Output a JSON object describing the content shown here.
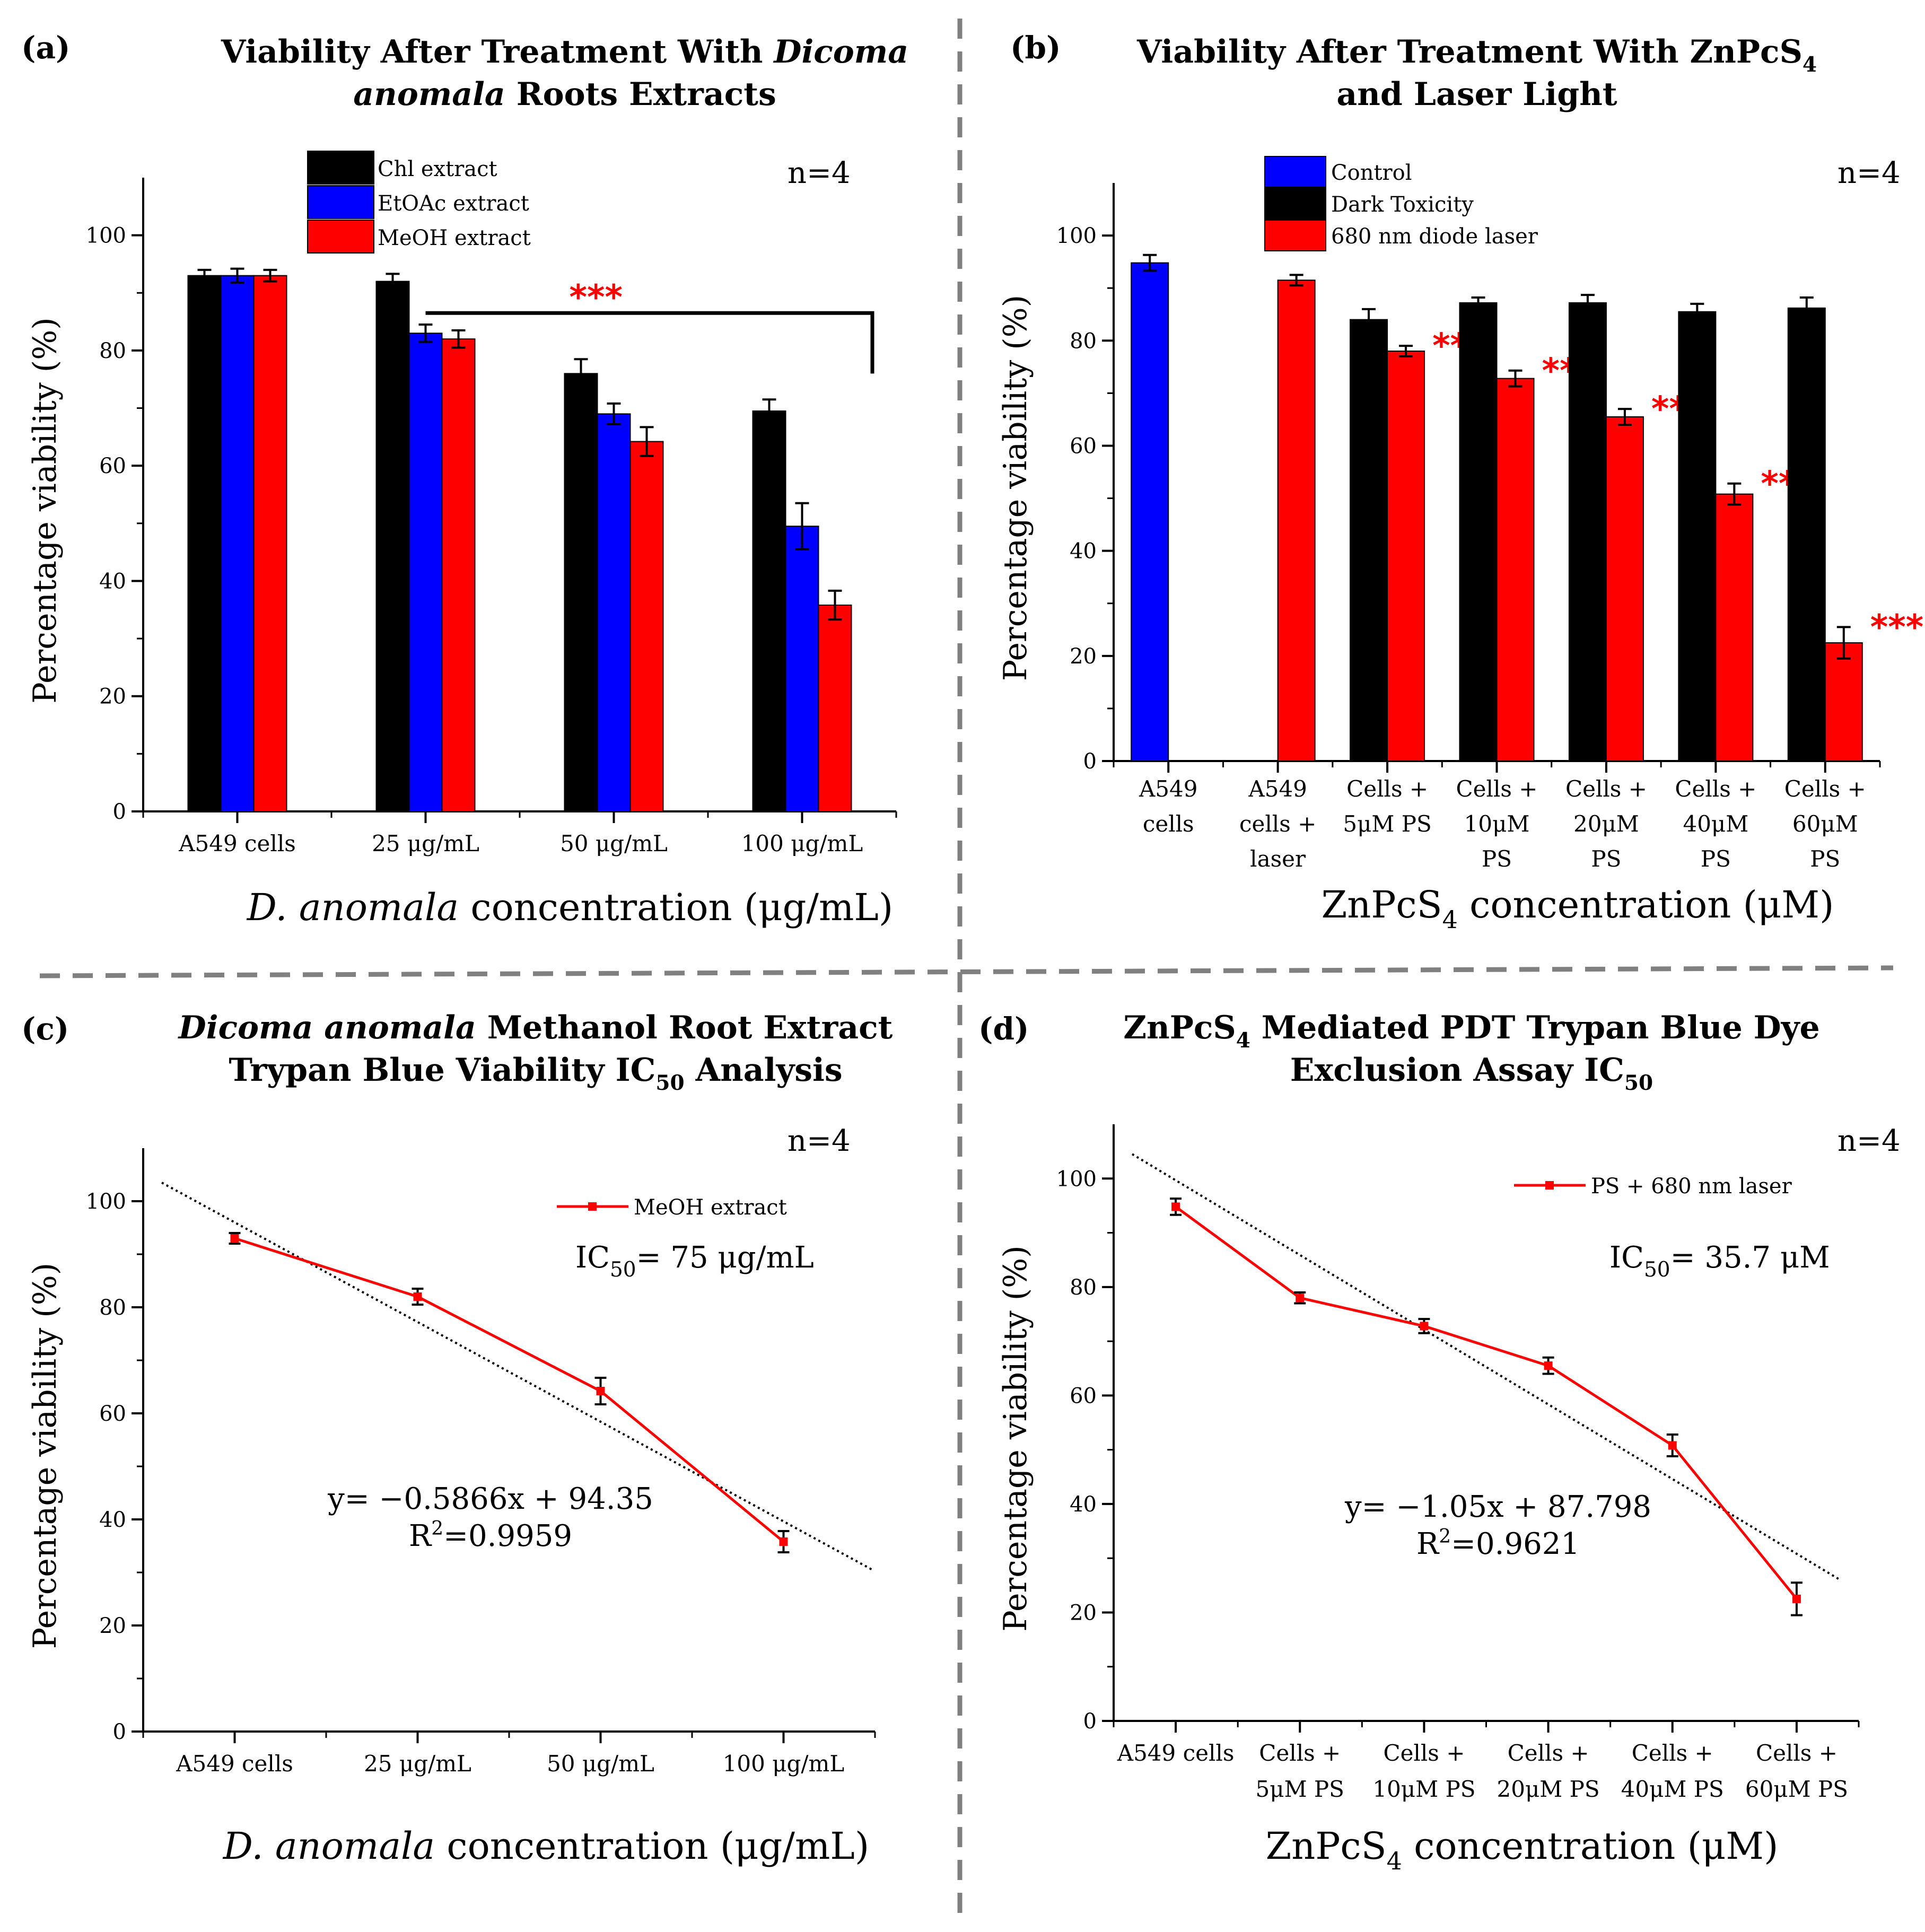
{
  "colors": {
    "black": "#000000",
    "blue": "#0000ff",
    "red": "#ff0000",
    "divider": "#808080",
    "trend": "#000000"
  },
  "chart_data": [
    {
      "panel": "(a)",
      "type": "bar",
      "title_lines": [
        [
          {
            "t": "Viability After Treatment With "
          },
          {
            "t": "Dicoma",
            "i": true
          }
        ],
        [
          {
            "t": "anomala",
            "i": true
          },
          {
            "t": " Roots Extracts"
          }
        ]
      ],
      "n_label": "n=4",
      "ylabel": "Percentage viability (%)",
      "xlabel": [
        {
          "t": "D. anomala",
          "i": true
        },
        {
          "t": " concentration (μg/mL)"
        }
      ],
      "ylim": [
        0,
        110
      ],
      "yticks": [
        "0",
        "20",
        "40",
        "60",
        "80",
        "100"
      ],
      "categories": [
        [
          "A549 cells"
        ],
        [
          "25 μg/mL"
        ],
        [
          "50 μg/mL"
        ],
        [
          "100 μg/mL"
        ]
      ],
      "series": [
        {
          "name": "Chl extract",
          "color": "#000000",
          "values": [
            93,
            92,
            76,
            69.5
          ],
          "errors": [
            1,
            1.3,
            2.5,
            2
          ]
        },
        {
          "name": "EtOAc extract",
          "color": "#0000ff",
          "values": [
            93,
            83,
            69,
            49.5
          ],
          "errors": [
            1.2,
            1.5,
            1.8,
            4
          ]
        },
        {
          "name": "MeOH extract",
          "color": "#ff0000",
          "values": [
            93,
            82,
            64.2,
            35.8
          ],
          "errors": [
            1,
            1.5,
            2.5,
            2.5
          ]
        }
      ],
      "significance": "***"
    },
    {
      "panel": "(b)",
      "type": "bar",
      "title_lines": [
        [
          {
            "t": "Viability After Treatment With ZnPcS"
          },
          {
            "t": "4",
            "sub": true
          }
        ],
        [
          {
            "t": "and Laser Light"
          }
        ]
      ],
      "n_label": "n=4",
      "ylabel": "Percentage viability (%)",
      "xlabel": [
        {
          "t": "ZnPcS"
        },
        {
          "t": "4",
          "sub": true
        },
        {
          "t": " concentration (μM)"
        }
      ],
      "ylim": [
        0,
        110
      ],
      "yticks": [
        "0",
        "20",
        "40",
        "60",
        "80",
        "100"
      ],
      "categories": [
        [
          "A549",
          "cells"
        ],
        [
          "A549",
          "cells +",
          "laser"
        ],
        [
          "Cells +",
          "5μM PS"
        ],
        [
          "Cells +",
          "10μM",
          "PS"
        ],
        [
          "Cells +",
          "20μM",
          "PS"
        ],
        [
          "Cells +",
          "40μM",
          "PS"
        ],
        [
          "Cells +",
          "60μM",
          "PS"
        ]
      ],
      "legend": [
        "Control",
        "Dark Toxicity",
        "680 nm diode laser"
      ],
      "bars": [
        [
          {
            "color": "#0000ff",
            "value": 94.8,
            "err": 1.5
          }
        ],
        [
          {
            "color": "#ff0000",
            "value": 91.5,
            "err": 1
          }
        ],
        [
          {
            "color": "#000000",
            "value": 84,
            "err": 2
          },
          {
            "color": "#ff0000",
            "value": 78,
            "err": 1
          }
        ],
        [
          {
            "color": "#000000",
            "value": 87.2,
            "err": 1
          },
          {
            "color": "#ff0000",
            "value": 72.8,
            "err": 1.5
          }
        ],
        [
          {
            "color": "#000000",
            "value": 87.2,
            "err": 1.5
          },
          {
            "color": "#ff0000",
            "value": 65.5,
            "err": 1.5
          }
        ],
        [
          {
            "color": "#000000",
            "value": 85.5,
            "err": 1.5
          },
          {
            "color": "#ff0000",
            "value": 50.8,
            "err": 2
          }
        ],
        [
          {
            "color": "#000000",
            "value": 86.2,
            "err": 2
          },
          {
            "color": "#ff0000",
            "value": 22.5,
            "err": 3
          }
        ]
      ],
      "significance": [
        "",
        "",
        "**",
        "***",
        "***",
        "***",
        "***"
      ]
    },
    {
      "panel": "(c)",
      "type": "line",
      "title_lines": [
        [
          {
            "t": "Dicoma anomala",
            "i": true
          },
          {
            "t": " Methanol Root Extract"
          }
        ],
        [
          {
            "t": "Trypan Blue Viability IC"
          },
          {
            "t": "50",
            "sub": true
          },
          {
            "t": " Analysis"
          }
        ]
      ],
      "n_label": "n=4",
      "ylabel": "Percentage viability (%)",
      "xlabel": [
        {
          "t": "D. anomala",
          "i": true
        },
        {
          "t": " concentration (μg/mL)"
        }
      ],
      "ylim": [
        0,
        110
      ],
      "yticks": [
        "0",
        "20",
        "40",
        "60",
        "80",
        "100"
      ],
      "categories": [
        [
          "A549 cells"
        ],
        [
          "25 μg/mL"
        ],
        [
          "50 μg/mL"
        ],
        [
          "100 μg/mL"
        ]
      ],
      "series": [
        {
          "name": "MeOH extract",
          "values": [
            93,
            82,
            64.2,
            35.8
          ],
          "errors": [
            1,
            1.5,
            2.5,
            2
          ]
        }
      ],
      "trendline": {
        "start": 103.5,
        "end": 30.5
      },
      "ic50": [
        {
          "t": "IC"
        },
        {
          "t": "50",
          "sub": true
        },
        {
          "t": "= 75 μg/mL"
        }
      ],
      "equation": "y= −0.5866x + 94.35",
      "r2": [
        {
          "t": "R"
        },
        {
          "t": "2",
          "sup": true
        },
        {
          "t": "=0.9959"
        }
      ]
    },
    {
      "panel": "(d)",
      "type": "line",
      "title_lines": [
        [
          {
            "t": "ZnPcS"
          },
          {
            "t": "4",
            "sub": true
          },
          {
            "t": " Mediated PDT Trypan Blue Dye"
          }
        ],
        [
          {
            "t": "Exclusion Assay IC"
          },
          {
            "t": "50",
            "sub": true
          }
        ]
      ],
      "n_label": "n=4",
      "ylabel": "Percentage viability (%)",
      "xlabel": [
        {
          "t": "ZnPcS"
        },
        {
          "t": "4",
          "sub": true
        },
        {
          "t": " concentration (μM)"
        }
      ],
      "ylim": [
        0,
        110
      ],
      "yticks": [
        "0",
        "20",
        "40",
        "60",
        "80",
        "100"
      ],
      "categories": [
        [
          "A549 cells"
        ],
        [
          "Cells +",
          "5μM PS"
        ],
        [
          "Cells +",
          "10μM PS"
        ],
        [
          "Cells +",
          "20μM PS"
        ],
        [
          "Cells +",
          "40μM PS"
        ],
        [
          "Cells +",
          "60μM PS"
        ]
      ],
      "series": [
        {
          "name": "PS + 680 nm laser",
          "values": [
            94.8,
            78,
            72.8,
            65.5,
            50.8,
            22.5
          ],
          "errors": [
            1.5,
            1,
            1.3,
            1.5,
            2,
            3
          ]
        }
      ],
      "trendline": {
        "start": 104.5,
        "end": 26
      },
      "ic50": [
        {
          "t": "IC"
        },
        {
          "t": "50",
          "sub": true
        },
        {
          "t": "= 35.7 μM"
        }
      ],
      "equation": "y= −1.05x + 87.798",
      "r2": [
        {
          "t": "R"
        },
        {
          "t": "2",
          "sup": true
        },
        {
          "t": "=0.9621"
        }
      ]
    }
  ]
}
